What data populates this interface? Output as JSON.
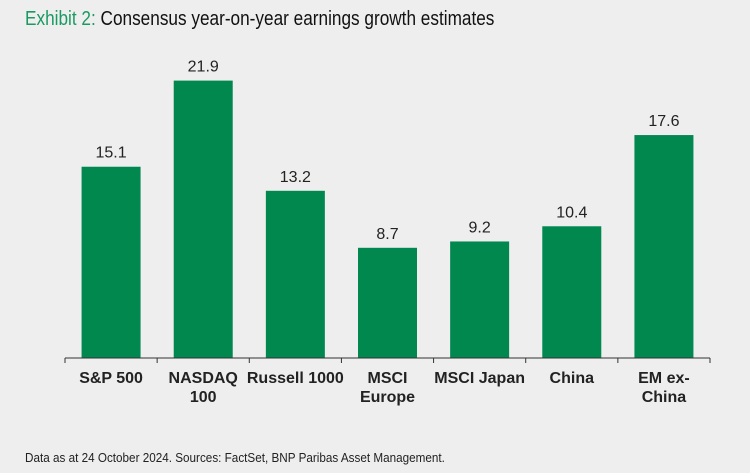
{
  "chart_data": {
    "type": "bar",
    "title_prefix": "Exhibit 2:",
    "title": "Consensus year-on-year earnings growth estimates",
    "categories": [
      [
        "S&P 500"
      ],
      [
        "NASDAQ",
        "100"
      ],
      [
        "Russell 1000"
      ],
      [
        "MSCI",
        "Europe"
      ],
      [
        "MSCI Japan"
      ],
      [
        "China"
      ],
      [
        "EM ex-",
        "China"
      ]
    ],
    "values": [
      15.1,
      21.9,
      13.2,
      8.7,
      9.2,
      10.4,
      17.6
    ],
    "value_labels": [
      "15.1",
      "21.9",
      "13.2",
      "8.7",
      "9.2",
      "10.4",
      "17.6"
    ],
    "xlabel": "",
    "ylabel": "",
    "ylim": [
      0,
      24
    ],
    "grid": false,
    "bar_color": "#00884f",
    "note": "Data as at 24 October 2024. Sources: FactSet, BNP Paribas Asset Management."
  }
}
